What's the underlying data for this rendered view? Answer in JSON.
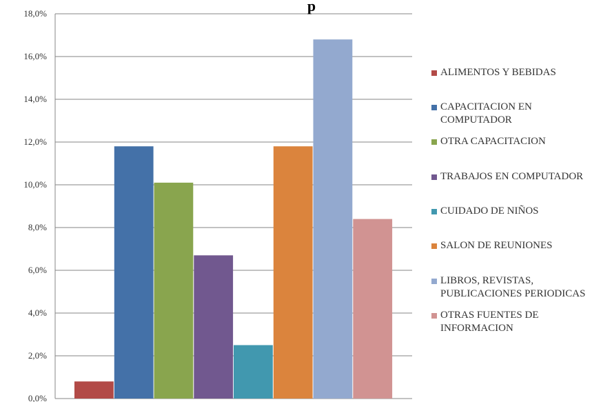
{
  "chart_data": {
    "type": "bar",
    "title": "p",
    "xlabel": "",
    "ylabel": "",
    "ylim": [
      0,
      18
    ],
    "y_ticks": [
      "0,0%",
      "2,0%",
      "4,0%",
      "6,0%",
      "8,0%",
      "10,0%",
      "12,0%",
      "14,0%",
      "16,0%",
      "18,0%"
    ],
    "grid": true,
    "legend_position": "right",
    "categories": [
      "ALIMENTOS Y BEBIDAS",
      "CAPACITACION EN COMPUTADOR",
      "OTRA CAPACITACION",
      "TRABAJOS EN COMPUTADOR",
      "CUIDADO DE NIÑOS",
      "SALON DE REUNIONES",
      "LIBROS, REVISTAS, PUBLICACIONES PERIODICAS",
      "OTRAS FUENTES DE INFORMACION"
    ],
    "values": [
      0.8,
      11.8,
      10.1,
      6.7,
      2.5,
      11.8,
      16.8,
      8.4
    ],
    "colors": [
      "#B24A47",
      "#4471A8",
      "#89A54E",
      "#71588F",
      "#4198AF",
      "#DB843D",
      "#93A9CF",
      "#D19392"
    ],
    "legend": [
      "ALIMENTOS Y BEBIDAS",
      "CAPACITACION EN\nCOMPUTADOR",
      "OTRA CAPACITACION",
      "TRABAJOS EN COMPUTADOR",
      "CUIDADO DE NIÑOS",
      "SALON DE REUNIONES",
      "LIBROS, REVISTAS,\nPUBLICACIONES PERIODICAS",
      "OTRAS FUENTES DE\nINFORMACION"
    ]
  }
}
